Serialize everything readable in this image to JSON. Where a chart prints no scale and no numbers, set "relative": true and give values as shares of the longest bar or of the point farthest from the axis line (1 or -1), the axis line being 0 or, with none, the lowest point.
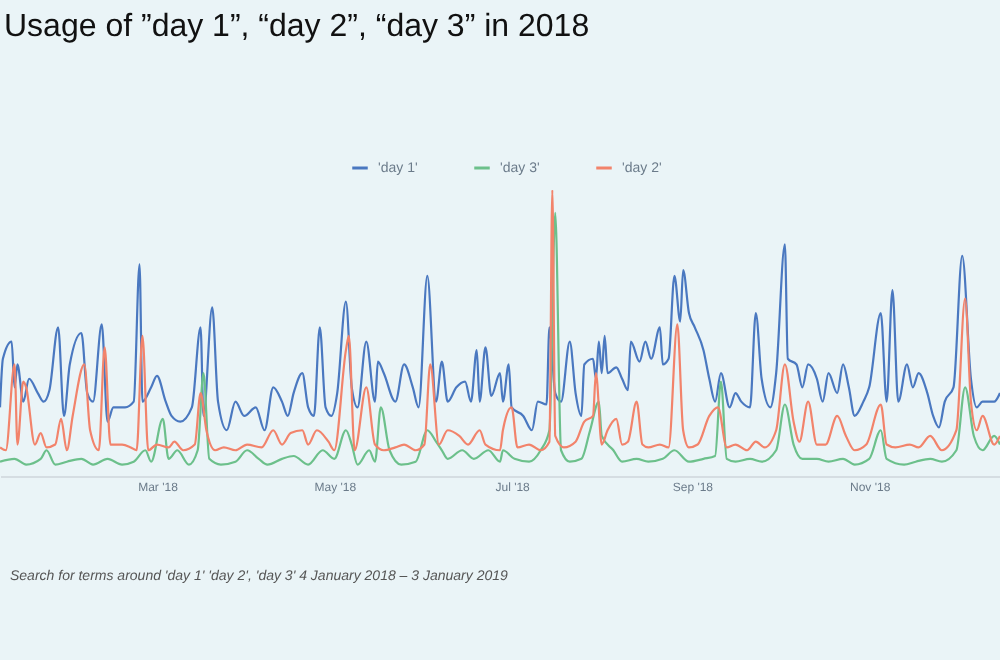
{
  "chart_data": {
    "type": "line",
    "title": "Usage of ”day 1”, “day 2”, “day 3” in 2018",
    "relative": true,
    "legend": "top",
    "xlim": [
      "2018-01-06",
      "2018-12-16"
    ],
    "xticks": [
      {
        "value": "2018-03-01",
        "label": "Mar '18"
      },
      {
        "value": "2018-05-01",
        "label": "May '18"
      },
      {
        "value": "2018-07-01",
        "label": "Jul '18"
      },
      {
        "value": "2018-09-01",
        "label": "Sep '18"
      },
      {
        "value": "2018-11-01",
        "label": "Nov '18"
      }
    ],
    "annotations": [
      "Search for terms around 'day 1' 'day 2', 'day 3' 4 January 2018 – 3 January 2019"
    ],
    "series": [
      {
        "name": "'day 1'",
        "color": "#4a78c0",
        "x": [
          "2018-01-06",
          "2018-01-07",
          "2018-01-10",
          "2018-01-11",
          "2018-01-12",
          "2018-01-14",
          "2018-01-16",
          "2018-01-19",
          "2018-01-21",
          "2018-01-23",
          "2018-01-26",
          "2018-01-28",
          "2018-01-30",
          "2018-02-03",
          "2018-02-05",
          "2018-02-07",
          "2018-02-10",
          "2018-02-12",
          "2018-02-14",
          "2018-02-18",
          "2018-02-21",
          "2018-02-23",
          "2018-02-24",
          "2018-02-27",
          "2018-03-01",
          "2018-03-04",
          "2018-03-06",
          "2018-03-09",
          "2018-03-13",
          "2018-03-16",
          "2018-03-17",
          "2018-03-20",
          "2018-03-22",
          "2018-03-25",
          "2018-03-28",
          "2018-03-31",
          "2018-04-04",
          "2018-04-07",
          "2018-04-10",
          "2018-04-13",
          "2018-04-15",
          "2018-04-17",
          "2018-04-20",
          "2018-04-22",
          "2018-04-24",
          "2018-04-26",
          "2018-04-28",
          "2018-04-30",
          "2018-05-02",
          "2018-05-05",
          "2018-05-07",
          "2018-05-09",
          "2018-05-12",
          "2018-05-15",
          "2018-05-16",
          "2018-05-18",
          "2018-05-22",
          "2018-05-25",
          "2018-05-28",
          "2018-05-30",
          "2018-06-02",
          "2018-06-05",
          "2018-06-07",
          "2018-06-09",
          "2018-06-12",
          "2018-06-15",
          "2018-06-17",
          "2018-06-19",
          "2018-06-20",
          "2018-06-22",
          "2018-06-24",
          "2018-06-27",
          "2018-06-28",
          "2018-06-30",
          "2018-07-01",
          "2018-07-05",
          "2018-07-08",
          "2018-07-10",
          "2018-07-13",
          "2018-07-14",
          "2018-07-16",
          "2018-07-18",
          "2018-07-21",
          "2018-07-23",
          "2018-07-25",
          "2018-07-26",
          "2018-07-29",
          "2018-07-30",
          "2018-07-31",
          "2018-08-01",
          "2018-08-02",
          "2018-08-03",
          "2018-08-06",
          "2018-08-08",
          "2018-08-10",
          "2018-08-11",
          "2018-08-14",
          "2018-08-16",
          "2018-08-18",
          "2018-08-21",
          "2018-08-22",
          "2018-08-24",
          "2018-08-26",
          "2018-08-28",
          "2018-08-29",
          "2018-08-31",
          "2018-09-02",
          "2018-09-05",
          "2018-09-07",
          "2018-09-09",
          "2018-09-11",
          "2018-09-14",
          "2018-09-16",
          "2018-09-18",
          "2018-09-21",
          "2018-09-23",
          "2018-09-25",
          "2018-09-28",
          "2018-09-30",
          "2018-10-03",
          "2018-10-04",
          "2018-10-07",
          "2018-10-09",
          "2018-10-11",
          "2018-10-14",
          "2018-10-16",
          "2018-10-18",
          "2018-10-21",
          "2018-10-23",
          "2018-10-25",
          "2018-10-27",
          "2018-10-30",
          "2018-11-01",
          "2018-11-05",
          "2018-11-07",
          "2018-11-09",
          "2018-11-11",
          "2018-11-14",
          "2018-11-16",
          "2018-11-18",
          "2018-11-21",
          "2018-11-23",
          "2018-11-25",
          "2018-11-27",
          "2018-11-30",
          "2018-12-03",
          "2018-12-06",
          "2018-12-08",
          "2018-12-10",
          "2018-12-14",
          "2018-12-16"
        ],
        "values": [
          0.24,
          0.41,
          0.47,
          0.31,
          0.39,
          0.26,
          0.34,
          0.29,
          0.26,
          0.3,
          0.52,
          0.21,
          0.39,
          0.5,
          0.29,
          0.26,
          0.53,
          0.19,
          0.24,
          0.24,
          0.26,
          0.74,
          0.26,
          0.31,
          0.35,
          0.26,
          0.21,
          0.19,
          0.24,
          0.52,
          0.21,
          0.59,
          0.26,
          0.16,
          0.26,
          0.21,
          0.24,
          0.16,
          0.31,
          0.26,
          0.21,
          0.29,
          0.36,
          0.24,
          0.21,
          0.52,
          0.24,
          0.21,
          0.29,
          0.61,
          0.31,
          0.24,
          0.47,
          0.26,
          0.4,
          0.36,
          0.26,
          0.39,
          0.31,
          0.24,
          0.7,
          0.26,
          0.4,
          0.26,
          0.31,
          0.33,
          0.26,
          0.44,
          0.26,
          0.45,
          0.28,
          0.36,
          0.26,
          0.39,
          0.24,
          0.21,
          0.16,
          0.26,
          0.25,
          0.52,
          0.29,
          0.26,
          0.47,
          0.29,
          0.21,
          0.39,
          0.41,
          0.34,
          0.47,
          0.36,
          0.49,
          0.36,
          0.38,
          0.34,
          0.3,
          0.47,
          0.4,
          0.47,
          0.41,
          0.52,
          0.39,
          0.41,
          0.7,
          0.54,
          0.72,
          0.57,
          0.52,
          0.44,
          0.34,
          0.26,
          0.36,
          0.24,
          0.29,
          0.26,
          0.24,
          0.57,
          0.34,
          0.24,
          0.36,
          0.81,
          0.41,
          0.39,
          0.31,
          0.39,
          0.34,
          0.26,
          0.36,
          0.29,
          0.39,
          0.31,
          0.21,
          0.26,
          0.31,
          0.57,
          0.26,
          0.65,
          0.26,
          0.39,
          0.31,
          0.36,
          0.29,
          0.21,
          0.17,
          0.26,
          0.31,
          0.77,
          0.34,
          0.24,
          0.26,
          0.26,
          0.29
        ]
      },
      {
        "name": "'day 3'",
        "color": "#6cc08b",
        "x": [
          "2018-01-06",
          "2018-01-11",
          "2018-01-15",
          "2018-01-20",
          "2018-01-22",
          "2018-01-25",
          "2018-01-29",
          "2018-02-03",
          "2018-02-07",
          "2018-02-12",
          "2018-02-17",
          "2018-02-21",
          "2018-02-25",
          "2018-02-27",
          "2018-03-03",
          "2018-03-05",
          "2018-03-08",
          "2018-03-12",
          "2018-03-15",
          "2018-03-17",
          "2018-03-19",
          "2018-03-23",
          "2018-03-28",
          "2018-04-01",
          "2018-04-05",
          "2018-04-08",
          "2018-04-13",
          "2018-04-17",
          "2018-04-22",
          "2018-04-27",
          "2018-05-01",
          "2018-05-05",
          "2018-05-07",
          "2018-05-09",
          "2018-05-13",
          "2018-05-15",
          "2018-05-17",
          "2018-05-20",
          "2018-05-24",
          "2018-05-29",
          "2018-06-02",
          "2018-06-05",
          "2018-06-07",
          "2018-06-09",
          "2018-06-14",
          "2018-06-18",
          "2018-06-23",
          "2018-06-27",
          "2018-06-28",
          "2018-07-02",
          "2018-07-07",
          "2018-07-11",
          "2018-07-14",
          "2018-07-16",
          "2018-07-18",
          "2018-07-21",
          "2018-07-25",
          "2018-07-28",
          "2018-07-31",
          "2018-08-01",
          "2018-08-05",
          "2018-08-08",
          "2018-08-13",
          "2018-08-17",
          "2018-08-22",
          "2018-08-26",
          "2018-08-31",
          "2018-09-05",
          "2018-09-09",
          "2018-09-11",
          "2018-09-13",
          "2018-09-16",
          "2018-09-21",
          "2018-09-25",
          "2018-09-30",
          "2018-10-03",
          "2018-10-06",
          "2018-10-09",
          "2018-10-14",
          "2018-10-18",
          "2018-10-23",
          "2018-10-27",
          "2018-11-01",
          "2018-11-05",
          "2018-11-07",
          "2018-11-13",
          "2018-11-17",
          "2018-11-22",
          "2018-11-26",
          "2018-12-01",
          "2018-12-04",
          "2018-12-07",
          "2018-12-10",
          "2018-12-14",
          "2018-12-16"
        ],
        "values": [
          0.05,
          0.06,
          0.04,
          0.06,
          0.09,
          0.04,
          0.05,
          0.06,
          0.04,
          0.06,
          0.04,
          0.05,
          0.09,
          0.05,
          0.2,
          0.06,
          0.09,
          0.04,
          0.09,
          0.36,
          0.06,
          0.04,
          0.05,
          0.09,
          0.06,
          0.04,
          0.06,
          0.07,
          0.04,
          0.09,
          0.06,
          0.16,
          0.11,
          0.04,
          0.09,
          0.05,
          0.24,
          0.09,
          0.04,
          0.05,
          0.16,
          0.12,
          0.09,
          0.06,
          0.09,
          0.06,
          0.09,
          0.05,
          0.09,
          0.06,
          0.05,
          0.09,
          0.16,
          0.92,
          0.09,
          0.05,
          0.06,
          0.16,
          0.26,
          0.14,
          0.09,
          0.05,
          0.06,
          0.05,
          0.06,
          0.09,
          0.05,
          0.06,
          0.07,
          0.33,
          0.06,
          0.05,
          0.06,
          0.05,
          0.09,
          0.25,
          0.11,
          0.06,
          0.06,
          0.05,
          0.06,
          0.04,
          0.06,
          0.16,
          0.06,
          0.04,
          0.05,
          0.06,
          0.05,
          0.09,
          0.31,
          0.14,
          0.09,
          0.14,
          0.11
        ]
      },
      {
        "name": "'day 2'",
        "color": "#f2836b",
        "x": [
          "2018-01-06",
          "2018-01-08",
          "2018-01-11",
          "2018-01-12",
          "2018-01-14",
          "2018-01-15",
          "2018-01-18",
          "2018-01-20",
          "2018-01-22",
          "2018-01-25",
          "2018-01-27",
          "2018-01-29",
          "2018-01-31",
          "2018-02-04",
          "2018-02-06",
          "2018-02-09",
          "2018-02-11",
          "2018-02-13",
          "2018-02-17",
          "2018-02-20",
          "2018-02-22",
          "2018-02-24",
          "2018-02-26",
          "2018-03-01",
          "2018-03-05",
          "2018-03-07",
          "2018-03-10",
          "2018-03-14",
          "2018-03-16",
          "2018-03-18",
          "2018-03-21",
          "2018-03-24",
          "2018-03-28",
          "2018-04-01",
          "2018-04-06",
          "2018-04-10",
          "2018-04-13",
          "2018-04-16",
          "2018-04-20",
          "2018-04-22",
          "2018-04-25",
          "2018-04-29",
          "2018-05-01",
          "2018-05-05",
          "2018-05-06",
          "2018-05-08",
          "2018-05-12",
          "2018-05-15",
          "2018-05-18",
          "2018-05-22",
          "2018-05-25",
          "2018-05-29",
          "2018-06-01",
          "2018-06-03",
          "2018-06-06",
          "2018-06-09",
          "2018-06-13",
          "2018-06-16",
          "2018-06-20",
          "2018-06-22",
          "2018-06-27",
          "2018-06-28",
          "2018-07-01",
          "2018-07-03",
          "2018-07-07",
          "2018-07-11",
          "2018-07-14",
          "2018-07-15",
          "2018-07-16",
          "2018-07-19",
          "2018-07-23",
          "2018-07-26",
          "2018-07-29",
          "2018-07-30",
          "2018-08-01",
          "2018-08-03",
          "2018-08-06",
          "2018-08-08",
          "2018-08-10",
          "2018-08-13",
          "2018-08-15",
          "2018-08-17",
          "2018-08-21",
          "2018-08-24",
          "2018-08-27",
          "2018-08-29",
          "2018-08-31",
          "2018-09-03",
          "2018-09-07",
          "2018-09-10",
          "2018-09-13",
          "2018-09-16",
          "2018-09-20",
          "2018-09-23",
          "2018-09-26",
          "2018-09-30",
          "2018-10-03",
          "2018-10-06",
          "2018-10-08",
          "2018-10-11",
          "2018-10-14",
          "2018-10-17",
          "2018-10-21",
          "2018-10-24",
          "2018-10-27",
          "2018-10-31",
          "2018-11-05",
          "2018-11-07",
          "2018-11-10",
          "2018-11-15",
          "2018-11-18",
          "2018-11-22",
          "2018-11-26",
          "2018-12-01",
          "2018-12-04",
          "2018-12-06",
          "2018-12-08",
          "2018-12-10",
          "2018-12-14",
          "2018-12-16"
        ],
        "values": [
          0.1,
          0.09,
          0.39,
          0.11,
          0.33,
          0.31,
          0.11,
          0.15,
          0.1,
          0.11,
          0.2,
          0.09,
          0.21,
          0.39,
          0.16,
          0.09,
          0.45,
          0.11,
          0.11,
          0.1,
          0.09,
          0.49,
          0.09,
          0.11,
          0.1,
          0.12,
          0.09,
          0.11,
          0.29,
          0.16,
          0.09,
          0.1,
          0.09,
          0.11,
          0.1,
          0.16,
          0.11,
          0.15,
          0.16,
          0.11,
          0.16,
          0.12,
          0.09,
          0.44,
          0.49,
          0.09,
          0.31,
          0.11,
          0.09,
          0.1,
          0.11,
          0.09,
          0.11,
          0.39,
          0.11,
          0.16,
          0.14,
          0.11,
          0.16,
          0.11,
          0.09,
          0.16,
          0.24,
          0.1,
          0.11,
          0.09,
          0.12,
          1.0,
          0.14,
          0.1,
          0.12,
          0.19,
          0.21,
          0.36,
          0.11,
          0.16,
          0.2,
          0.11,
          0.12,
          0.26,
          0.11,
          0.1,
          0.11,
          0.1,
          0.53,
          0.16,
          0.1,
          0.11,
          0.21,
          0.24,
          0.1,
          0.11,
          0.09,
          0.12,
          0.1,
          0.16,
          0.39,
          0.19,
          0.12,
          0.26,
          0.11,
          0.11,
          0.21,
          0.14,
          0.09,
          0.11,
          0.25,
          0.11,
          0.1,
          0.11,
          0.1,
          0.14,
          0.09,
          0.16,
          0.62,
          0.26,
          0.16,
          0.21,
          0.11,
          0.14
        ]
      }
    ]
  }
}
